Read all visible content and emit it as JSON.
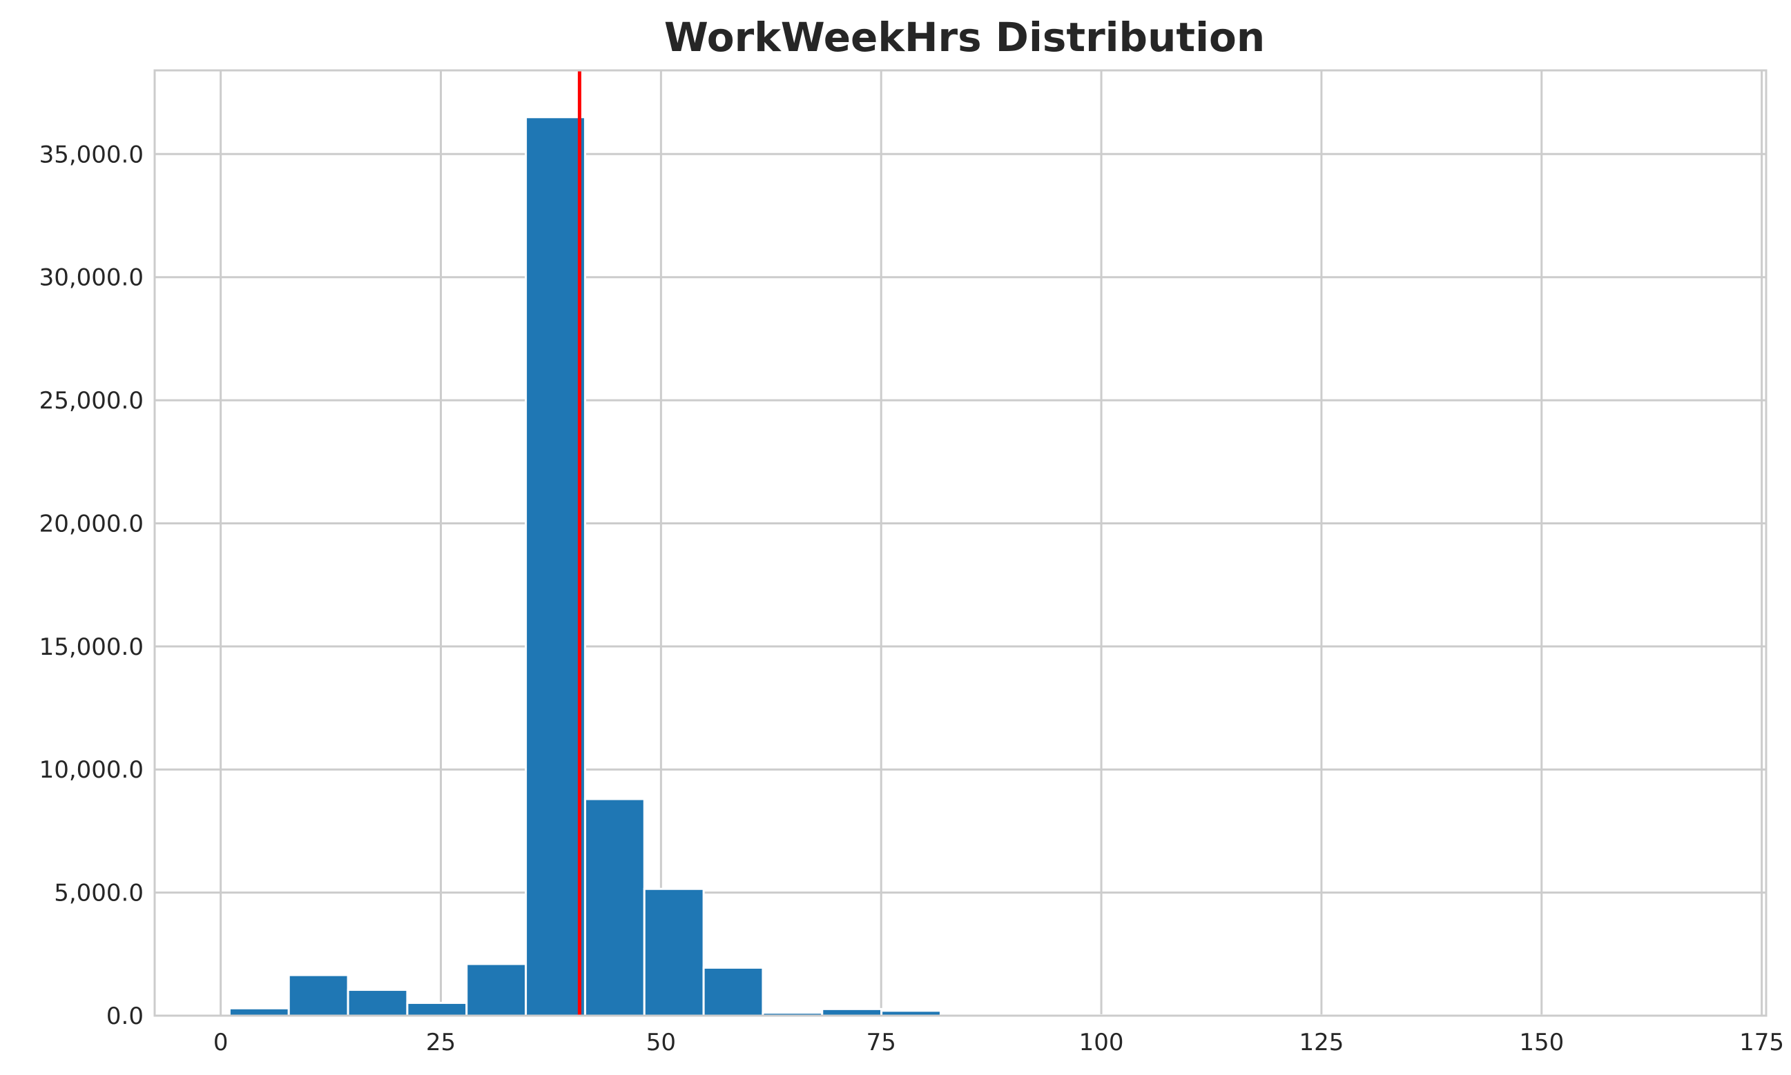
{
  "chart_data": {
    "type": "bar",
    "title": "WorkWeekHrs Distribution",
    "xlabel": "",
    "ylabel": "",
    "xlim": [
      -7.5,
      175.5
    ],
    "ylim": [
      0,
      38400
    ],
    "x_ticks": [
      0,
      25,
      50,
      75,
      100,
      125,
      150,
      175
    ],
    "x_tick_labels": [
      "0",
      "25",
      "50",
      "75",
      "100",
      "125",
      "150",
      "175"
    ],
    "y_ticks": [
      0,
      5000,
      10000,
      15000,
      20000,
      25000,
      30000,
      35000
    ],
    "y_tick_labels": [
      "0.0",
      "5,000.0",
      "10,000.0",
      "15,000.0",
      "20,000.0",
      "25,000.0",
      "30,000.0",
      "35,000.0"
    ],
    "bin_width": 6.73,
    "bin_edges": [
      1,
      7.73,
      14.46,
      21.19,
      27.92,
      34.65,
      41.38,
      48.11,
      54.84,
      61.57,
      68.3,
      75.03,
      81.76,
      88.49,
      95.22,
      101.95,
      108.68,
      115.41,
      122.14,
      128.87,
      135.6,
      142.33,
      149.06,
      155.79,
      162.52,
      169.25
    ],
    "counts": [
      300,
      1650,
      1050,
      520,
      2100,
      36500,
      8800,
      5150,
      1950,
      120,
      270,
      200,
      30,
      20,
      15,
      10,
      10,
      10,
      8,
      8,
      6,
      6,
      6,
      5,
      5
    ],
    "bar_color": "#1f77b4",
    "reference_line": {
      "x": 40.75,
      "color": "#ff0000"
    },
    "grid": true,
    "legend": "none"
  }
}
